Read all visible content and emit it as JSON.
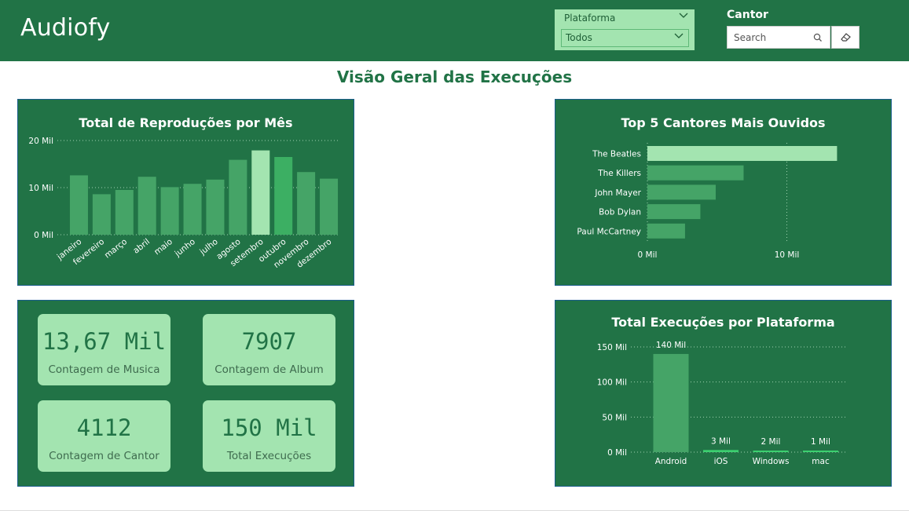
{
  "app": {
    "title": "Audiofy"
  },
  "filters": {
    "plataforma": {
      "label": "Plataforma",
      "selected": "Todos"
    },
    "cantor": {
      "label": "Cantor",
      "placeholder": "Search"
    }
  },
  "page": {
    "title": "Visão Geral das Execuções"
  },
  "colors": {
    "header": "#217346",
    "panel": "#217346",
    "accent_light": "#a3e4b0",
    "bar": "#45a467",
    "bar_highlight": "#a3e4b0",
    "bar_alt": "#3caf63"
  },
  "kpis": [
    {
      "value": "13,67 Mil",
      "label": "Contagem de Musica"
    },
    {
      "value": "7907",
      "label": "Contagem de Album"
    },
    {
      "value": "4112",
      "label": "Contagem de Cantor"
    },
    {
      "value": "150 Mil",
      "label": "Total Execuções"
    }
  ],
  "chart_data": [
    {
      "type": "bar",
      "title": "Total de Reproduções por Mês",
      "categories": [
        "janeiro",
        "fevereiro",
        "março",
        "abril",
        "maio",
        "junho",
        "julho",
        "agosto",
        "setembro",
        "outubro",
        "novembro",
        "dezembro"
      ],
      "values": [
        12600,
        8600,
        9500,
        12300,
        10100,
        10800,
        11700,
        15900,
        17900,
        16500,
        13300,
        11900
      ],
      "highlight": {
        "setembro": "#a3e4b0",
        "outubro": "#3caf63"
      },
      "ylim": [
        0,
        20000
      ],
      "yticks": [
        0,
        10000,
        20000
      ],
      "ytick_labels": [
        "0 Mil",
        "10 Mil",
        "20 Mil"
      ],
      "grid": true
    },
    {
      "type": "bar",
      "orientation": "horizontal",
      "title": "Top 5 Cantores Mais Ouvidos",
      "categories": [
        "The Beatles",
        "The Killers",
        "John Mayer",
        "Bob Dylan",
        "Paul McCartney"
      ],
      "values": [
        13600,
        6900,
        4900,
        3800,
        2700
      ],
      "xlim": [
        0,
        14000
      ],
      "xticks": [
        0,
        10000
      ],
      "xtick_labels": [
        "0 Mil",
        "10 Mil"
      ],
      "grid": true
    },
    {
      "type": "bar",
      "title": "Total Execuções por Plataforma",
      "categories": [
        "Android",
        "iOS",
        "Windows",
        "mac"
      ],
      "values": [
        140000,
        3000,
        2000,
        1000
      ],
      "data_labels": [
        "140 Mil",
        "3 Mil",
        "2 Mil",
        "1 Mil"
      ],
      "ylim": [
        0,
        150000
      ],
      "yticks": [
        0,
        50000,
        100000,
        150000
      ],
      "ytick_labels": [
        "0 Mil",
        "50 Mil",
        "100 Mil",
        "150 Mil"
      ],
      "grid": true
    }
  ]
}
